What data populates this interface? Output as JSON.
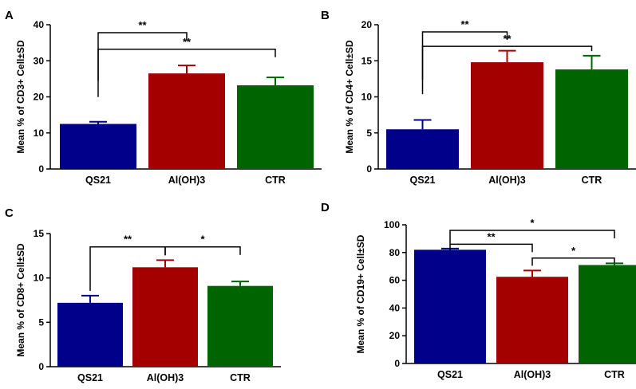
{
  "chart_data": [
    {
      "panel": "A",
      "type": "bar",
      "categories": [
        "QS21",
        "Al(OH)3",
        "CTR"
      ],
      "values": [
        12.5,
        26.5,
        23.2
      ],
      "errors": [
        0.6,
        2.2,
        2.2
      ],
      "ylabel": "Mean % of CD3+ Cell±SD",
      "ylim": [
        0,
        40
      ],
      "yticks": [
        0,
        10,
        20,
        30,
        40
      ],
      "bar_colors": [
        "#00008B",
        "#A50000",
        "#006400"
      ],
      "significance": [
        {
          "from": 0,
          "to": 1,
          "label": "**",
          "level": 37.8
        },
        {
          "from": 0,
          "to": 2,
          "label": "**",
          "level": 33.2
        }
      ]
    },
    {
      "panel": "B",
      "type": "bar",
      "categories": [
        "QS21",
        "Al(OH)3",
        "CTR"
      ],
      "values": [
        5.5,
        14.8,
        13.8
      ],
      "errors": [
        1.3,
        1.6,
        1.9
      ],
      "ylabel": "Mean % of CD4+ Cell±SD",
      "ylim": [
        0,
        20
      ],
      "yticks": [
        0,
        5,
        10,
        15,
        20
      ],
      "bar_colors": [
        "#00008B",
        "#A50000",
        "#006400"
      ],
      "significance": [
        {
          "from": 0,
          "to": 1,
          "label": "**",
          "level": 19.0
        },
        {
          "from": 0,
          "to": 2,
          "label": "**",
          "level": 17.0
        }
      ]
    },
    {
      "panel": "C",
      "type": "bar",
      "categories": [
        "QS21",
        "Al(OH)3",
        "CTR"
      ],
      "values": [
        7.2,
        11.2,
        9.1
      ],
      "errors": [
        0.8,
        0.8,
        0.5
      ],
      "ylabel": "Mean % of CD8+ Cell±SD",
      "ylim": [
        0,
        15
      ],
      "yticks": [
        0,
        5,
        10,
        15
      ],
      "bar_colors": [
        "#00008B",
        "#A50000",
        "#006400"
      ],
      "significance": [
        {
          "from": 0,
          "to": 1,
          "label": "**",
          "level": 13.5
        },
        {
          "from": 1,
          "to": 2,
          "label": "*",
          "level": 13.5
        }
      ]
    },
    {
      "panel": "D",
      "type": "bar",
      "categories": [
        "QS21",
        "Al(OH)3",
        "CTR"
      ],
      "values": [
        82,
        62.5,
        71
      ],
      "errors": [
        0.8,
        4.5,
        1.2
      ],
      "ylabel": "Mean % of CD19+ Cell±SD",
      "ylim": [
        0,
        100
      ],
      "yticks": [
        0,
        20,
        40,
        60,
        80,
        100
      ],
      "bar_colors": [
        "#00008B",
        "#A50000",
        "#006400"
      ],
      "significance": [
        {
          "from": 0,
          "to": 2,
          "label": "*",
          "level": 96
        },
        {
          "from": 0,
          "to": 1,
          "label": "**",
          "level": 86
        },
        {
          "from": 1,
          "to": 2,
          "label": "*",
          "level": 76
        }
      ]
    }
  ]
}
